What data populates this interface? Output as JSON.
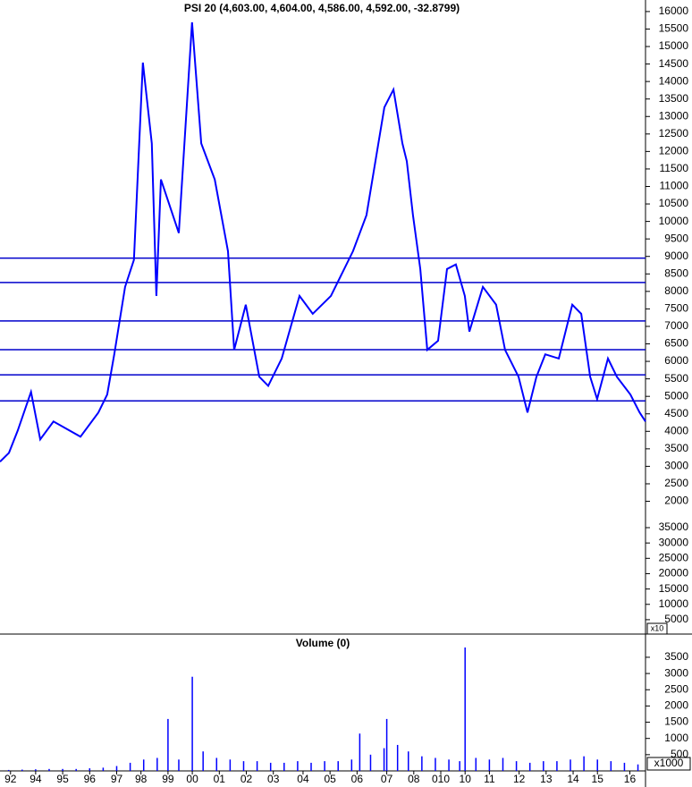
{
  "chart_data": [
    {
      "type": "line",
      "title": "PSI 20 (4,603.00, 4,604.00, 4,586.00, 4,592.00, -32.8799)",
      "color": "#0000ff",
      "x": [
        1992.68,
        1993.01,
        1993.34,
        1993.83,
        1994.17,
        1994.66,
        1995.66,
        1996.32,
        1996.65,
        1996.91,
        1997.31,
        1997.64,
        1997.97,
        1998.3,
        1998.47,
        1998.64,
        1999.3,
        1999.79,
        2000.13,
        2000.63,
        2001.12,
        2001.35,
        2001.78,
        2002.28,
        2002.61,
        2003.11,
        2003.77,
        2004.26,
        2004.93,
        2005.75,
        2006.25,
        2006.91,
        2007.25,
        2007.58,
        2007.74,
        2007.97,
        2008.24,
        2008.5,
        2008.9,
        2009.23,
        2009.56,
        2009.89,
        2010.06,
        2010.56,
        2011.05,
        2011.38,
        2011.88,
        2012.21,
        2012.54,
        2012.87,
        2013.37,
        2013.87,
        2014.2,
        2014.53,
        2014.79,
        2015.19,
        2015.52,
        2016.02,
        2016.36,
        2016.58
      ],
      "values": [
        3130,
        3385,
        4026,
        5128,
        3770,
        4282,
        3846,
        4538,
        5050,
        6200,
        8130,
        8900,
        14540,
        12230,
        7870,
        11200,
        9670,
        15690,
        12230,
        11200,
        9150,
        6330,
        7620,
        5560,
        5300,
        6080,
        7870,
        7360,
        7870,
        9150,
        10180,
        13260,
        13770,
        12230,
        11720,
        10180,
        8640,
        6330,
        6590,
        8640,
        8770,
        7870,
        6850,
        8130,
        7620,
        6330,
        5560,
        4540,
        5560,
        6200,
        6080,
        7620,
        7360,
        5560,
        4920,
        6080,
        5560,
        5050,
        4540,
        4280
      ],
      "ylim": [
        -1770,
        16330
      ],
      "yticks": [
        2000,
        2500,
        3000,
        3500,
        4000,
        4500,
        5000,
        5500,
        6000,
        6500,
        7000,
        7500,
        8000,
        8500,
        9000,
        9500,
        10000,
        10500,
        11000,
        11500,
        12000,
        12500,
        13000,
        13500,
        14000,
        14500,
        15000,
        15500,
        16000
      ],
      "hlines": [
        8950,
        8256,
        7154,
        6333,
        5615,
        4872
      ],
      "y2lim": [
        600,
        207000
      ],
      "y2ticks": [
        5000,
        10000,
        15000,
        20000,
        25000,
        30000,
        35000
      ],
      "y2_unit": "x10"
    },
    {
      "type": "bar",
      "title": "Volume (0)",
      "color": "#0000ff",
      "x": [
        1993.0,
        1993.5,
        1994.0,
        1994.5,
        1995.0,
        1995.5,
        1996.0,
        1996.5,
        1997.0,
        1997.5,
        1998.0,
        1998.5,
        1998.9,
        1999.3,
        1999.8,
        2000.2,
        2000.7,
        2001.2,
        2001.7,
        2002.2,
        2002.7,
        2003.2,
        2003.7,
        2004.2,
        2004.7,
        2005.2,
        2005.7,
        2006.0,
        2006.4,
        2006.9,
        2007.0,
        2007.4,
        2007.8,
        2008.3,
        2008.8,
        2009.3,
        2009.7,
        2009.9,
        2010.3,
        2010.8,
        2011.3,
        2011.8,
        2012.3,
        2012.8,
        2013.3,
        2013.8,
        2014.3,
        2014.8,
        2015.3,
        2015.8,
        2016.3
      ],
      "values": [
        30,
        40,
        50,
        60,
        60,
        60,
        80,
        100,
        150,
        250,
        350,
        400,
        1600,
        350,
        2900,
        600,
        400,
        350,
        300,
        300,
        250,
        250,
        300,
        250,
        300,
        300,
        350,
        1150,
        500,
        700,
        1600,
        800,
        600,
        450,
        400,
        350,
        300,
        3800,
        400,
        350,
        400,
        300,
        250,
        300,
        300,
        350,
        450,
        350,
        300,
        250,
        200
      ],
      "ylim": [
        0,
        4187
      ],
      "yticks": [
        500,
        1000,
        1500,
        2000,
        2500,
        3000,
        3500
      ],
      "y_unit": "x1000",
      "xlim": [
        1992.68,
        2016.58
      ],
      "xticks": [
        {
          "value": 1993.07,
          "label": "92"
        },
        {
          "value": 1994,
          "label": "94"
        },
        {
          "value": 1995,
          "label": "95"
        },
        {
          "value": 1996,
          "label": "96"
        },
        {
          "value": 1997,
          "label": "97"
        },
        {
          "value": 1997.9,
          "label": "98"
        },
        {
          "value": 1998.9,
          "label": "99"
        },
        {
          "value": 1999.8,
          "label": "00"
        },
        {
          "value": 2000.8,
          "label": "01"
        },
        {
          "value": 2001.8,
          "label": "02"
        },
        {
          "value": 2002.8,
          "label": "03"
        },
        {
          "value": 2003.9,
          "label": "04"
        },
        {
          "value": 2004.9,
          "label": "05"
        },
        {
          "value": 2005.9,
          "label": "06"
        },
        {
          "value": 2007,
          "label": "07"
        },
        {
          "value": 2008,
          "label": "08"
        },
        {
          "value": 2009,
          "label": "010"
        },
        {
          "value": 2009.9,
          "label": "10"
        },
        {
          "value": 2010.8,
          "label": "11"
        },
        {
          "value": 2011.9,
          "label": "12"
        },
        {
          "value": 2012.9,
          "label": "13"
        },
        {
          "value": 2013.9,
          "label": "14"
        },
        {
          "value": 2014.8,
          "label": "15"
        },
        {
          "value": 2016,
          "label": "16"
        }
      ]
    }
  ]
}
